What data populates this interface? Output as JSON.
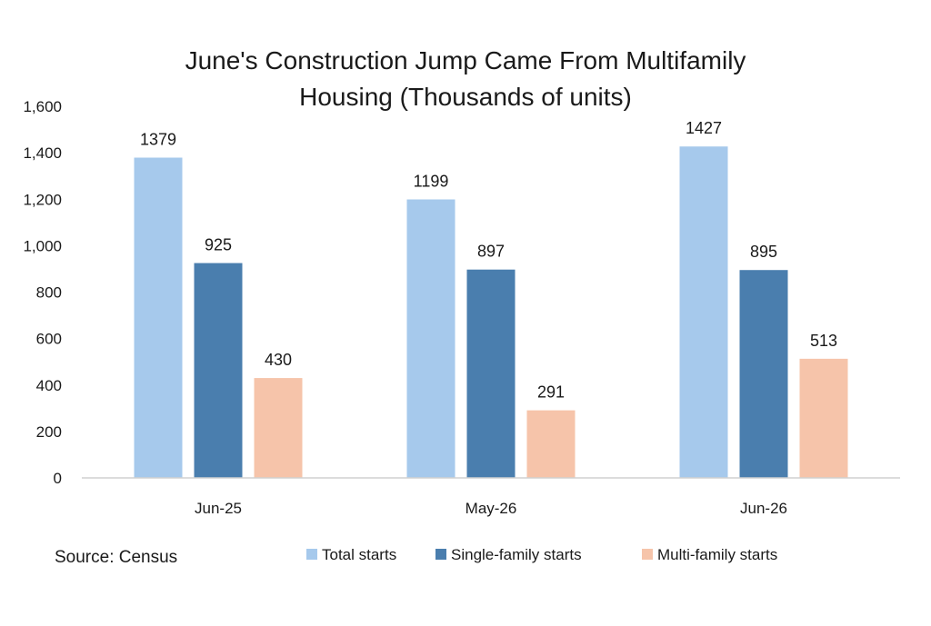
{
  "chart_data": {
    "type": "bar",
    "title": "June's Construction Jump Came From Multifamily Housing (Thousands of units)",
    "title_lines": [
      "June's Construction Jump Came From Multifamily",
      "Housing (Thousands of units)"
    ],
    "categories": [
      "Jun-25",
      "May-26",
      "Jun-26"
    ],
    "series": [
      {
        "name": "Total starts",
        "values": [
          1379,
          1199,
          1427
        ],
        "color": "#a6c9ec"
      },
      {
        "name": "Single-family starts",
        "values": [
          925,
          897,
          895
        ],
        "color": "#4a7eae"
      },
      {
        "name": "Multi-family starts",
        "values": [
          430,
          291,
          513
        ],
        "color": "#f6c4aa"
      }
    ],
    "ylim": [
      0,
      1600
    ],
    "yticks": [
      "0",
      "200",
      "400",
      "600",
      "800",
      "1,000",
      "1,200",
      "1,400",
      "1,600"
    ],
    "ytick_values": [
      0,
      200,
      400,
      600,
      800,
      1000,
      1200,
      1400,
      1600
    ],
    "grid": false,
    "legend_position": "bottom",
    "data_labels": true
  },
  "source_note": "Source: Census"
}
